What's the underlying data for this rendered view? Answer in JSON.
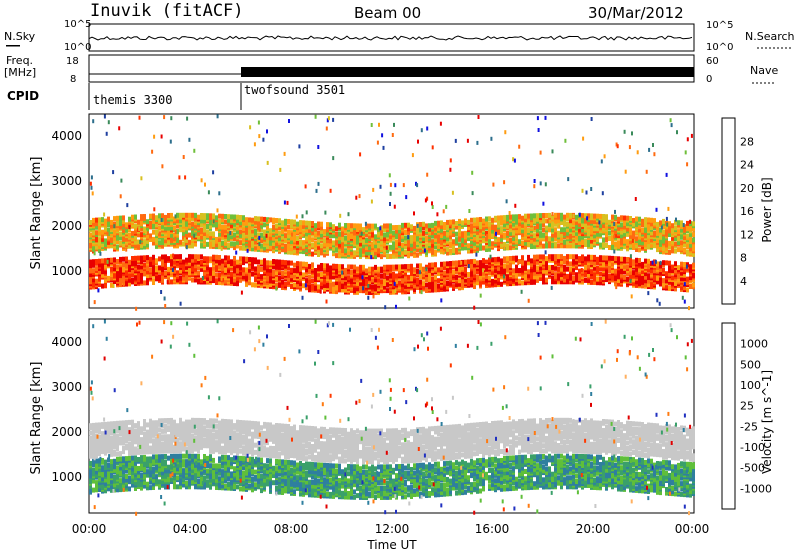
{
  "header": {
    "station": "Inuvik (fitACF)",
    "beam": "Beam 00",
    "date": "30/Mar/2012"
  },
  "summary_panels": {
    "nsky_label": "N.Sky",
    "nsky_ticks": [
      "10^5",
      "10^0"
    ],
    "nsearch_label": "N.Search",
    "nsearch_ticks": [
      "10^5",
      "10^0"
    ],
    "freq_label": "Freq.",
    "freq_unit": "[MHz]",
    "freq_ticks": [
      "18",
      "8"
    ],
    "nave_label": "Nave",
    "nave_ticks": [
      "60",
      "0"
    ],
    "cpid_label": "CPID",
    "cpid_segments": [
      {
        "name": "themis 3300",
        "start_hour": 0,
        "end_hour": 6
      },
      {
        "name": "twofsound 3501",
        "start_hour": 6,
        "end_hour": 24
      }
    ]
  },
  "chart_data": [
    {
      "type": "heatmap",
      "title": "",
      "ylabel": "Slant Range [km]",
      "xlabel": "",
      "x_range_hours": [
        0,
        24
      ],
      "y_range_km": [
        180,
        4500
      ],
      "y_ticks": [
        "1000",
        "2000",
        "3000",
        "4000"
      ],
      "colorbar": {
        "label": "Power [dB]",
        "range": [
          0,
          32
        ],
        "ticks": [
          "4",
          "8",
          "12",
          "16",
          "20",
          "24",
          "28"
        ],
        "colors": [
          "#1010e0",
          "#1e3fa0",
          "#2c6e8c",
          "#3a8a5a",
          "#6fbf3a",
          "#d8c020",
          "#ff9c10",
          "#ff6a10",
          "#ff3000",
          "#e80000"
        ]
      },
      "bands": [
        {
          "name": "low",
          "start_hour": 0,
          "end_hour": 24,
          "range_km": [
            700,
            1300
          ],
          "value": 28
        },
        {
          "name": "mid",
          "start_hour": 0,
          "end_hour": 24,
          "range_km": [
            1500,
            2200
          ],
          "value": 20
        }
      ]
    },
    {
      "type": "heatmap",
      "title": "",
      "ylabel": "Slant Range [km]",
      "xlabel": "Time UT",
      "x_ticks": [
        "00:00",
        "04:00",
        "08:00",
        "12:00",
        "16:00",
        "20:00",
        "00:00"
      ],
      "x_range_hours": [
        0,
        24
      ],
      "y_range_km": [
        180,
        4500
      ],
      "y_ticks": [
        "1000",
        "2000",
        "3000",
        "4000"
      ],
      "colorbar": {
        "label": "Velocity [m s^-1]",
        "ticks": [
          "1000",
          "500",
          "100",
          "25",
          "-25",
          "-100",
          "-500",
          "-1000"
        ],
        "colors": [
          "#2030c0",
          "#2f7f9f",
          "#3aa06a",
          "#5fbf3a",
          "#c8c8c8",
          "#ffb060",
          "#ff7a10",
          "#ff3a00",
          "#e00000"
        ]
      },
      "bands": [
        {
          "name": "low",
          "start_hour": 0,
          "end_hour": 24,
          "range_km": [
            700,
            1400
          ],
          "value": 100
        },
        {
          "name": "mid",
          "start_hour": 0,
          "end_hour": 24,
          "range_km": [
            1500,
            2200
          ],
          "value": 0
        }
      ]
    }
  ],
  "colors": {
    "frame": "#000000",
    "background": "#ffffff"
  }
}
